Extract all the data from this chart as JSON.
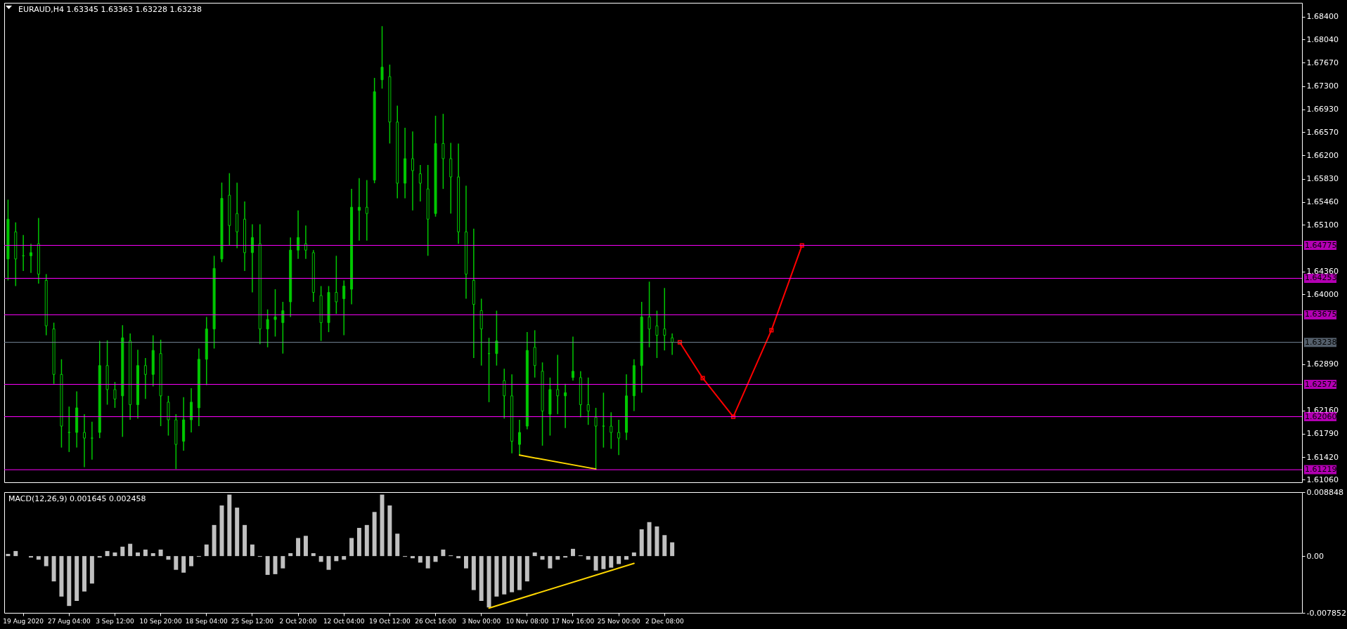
{
  "chart_data": [
    {
      "type": "candlestick",
      "title": "EURAUD,H4  1.63345 1.63363 1.63228 1.63238",
      "categories": [
        null,
        null,
        null,
        null,
        null,
        null,
        null,
        null,
        null,
        null,
        null,
        null,
        null,
        null,
        null,
        null,
        null,
        null,
        null,
        null,
        null,
        null,
        null,
        null,
        null,
        null,
        null,
        null,
        null,
        null,
        null,
        null,
        null,
        null,
        null,
        null,
        null,
        null,
        null,
        null,
        null,
        null,
        null,
        null,
        null,
        null,
        null,
        null,
        null,
        null,
        null,
        null,
        null,
        null,
        null,
        null,
        null,
        null,
        null,
        null,
        null,
        null,
        null,
        null,
        null,
        null,
        null,
        null,
        null,
        null,
        null,
        null,
        null,
        null,
        null,
        null,
        null,
        null,
        null,
        null,
        null,
        null,
        null,
        null,
        null,
        null,
        null,
        null,
        null,
        null,
        null,
        null,
        null,
        null,
        null,
        null,
        null,
        null,
        null,
        null,
        null,
        null,
        null,
        null,
        null,
        null,
        null,
        null,
        null,
        null,
        null,
        null,
        null,
        null,
        null,
        null,
        null,
        null,
        null,
        null,
        null,
        null,
        null,
        null,
        null,
        null,
        null,
        null,
        null,
        null,
        null,
        null,
        null,
        null,
        null,
        null,
        null,
        null,
        null,
        null,
        null,
        null,
        null,
        null,
        null,
        null,
        null,
        null,
        null,
        null,
        null,
        null,
        null,
        null,
        null,
        null,
        null,
        null,
        null,
        null,
        null,
        null,
        null,
        null,
        null,
        null,
        null,
        null,
        null,
        null
      ],
      "ohlc": [
        [
          1.6456,
          1.655,
          1.6422,
          1.6519
        ],
        [
          1.6499,
          1.6514,
          1.6413,
          1.6456
        ],
        [
          1.6461,
          1.6494,
          1.6437,
          1.6461
        ],
        [
          1.6461,
          1.648,
          1.6434,
          1.6466
        ],
        [
          1.648,
          1.6521,
          1.6417,
          1.6432
        ],
        [
          1.6422,
          1.6432,
          1.6335,
          1.635
        ],
        [
          1.6345,
          1.6355,
          1.6258,
          1.6273
        ],
        [
          1.6273,
          1.6297,
          1.6157,
          1.6191
        ],
        [
          1.6181,
          1.6222,
          1.615,
          1.6181
        ],
        [
          1.6181,
          1.6246,
          1.6157,
          1.622
        ],
        [
          1.6181,
          1.621,
          1.6126,
          1.6172
        ],
        [
          1.6172,
          1.6198,
          1.6138,
          1.6172
        ],
        [
          1.6181,
          1.6326,
          1.6172,
          1.6287
        ],
        [
          1.6287,
          1.6327,
          1.6225,
          1.6249
        ],
        [
          1.6249,
          1.6261,
          1.622,
          1.6234
        ],
        [
          1.6239,
          1.6351,
          1.6174,
          1.6331
        ],
        [
          1.6326,
          1.6338,
          1.6201,
          1.6225
        ],
        [
          1.6225,
          1.6312,
          1.6203,
          1.6287
        ],
        [
          1.6287,
          1.6299,
          1.6234,
          1.6273
        ],
        [
          1.6273,
          1.6335,
          1.6254,
          1.6311
        ],
        [
          1.6306,
          1.6328,
          1.6191,
          1.6239
        ],
        [
          1.6229,
          1.6239,
          1.6176,
          1.6201
        ],
        [
          1.6201,
          1.621,
          1.6123,
          1.6162
        ],
        [
          1.6167,
          1.6237,
          1.6152,
          1.6201
        ],
        [
          1.6201,
          1.6251,
          1.6181,
          1.6229
        ],
        [
          1.622,
          1.6314,
          1.6191,
          1.6297
        ],
        [
          1.6297,
          1.6364,
          1.6256,
          1.6345
        ],
        [
          1.6345,
          1.6461,
          1.6314,
          1.6441
        ],
        [
          1.6456,
          1.6577,
          1.6451,
          1.6552
        ],
        [
          1.6557,
          1.6592,
          1.6478,
          1.6509
        ],
        [
          1.6528,
          1.6577,
          1.6473,
          1.6499
        ],
        [
          1.6519,
          1.6547,
          1.6437,
          1.6466
        ],
        [
          1.6466,
          1.6511,
          1.6403,
          1.649
        ],
        [
          1.648,
          1.6511,
          1.6321,
          1.6345
        ],
        [
          1.6345,
          1.6376,
          1.6316,
          1.636
        ],
        [
          1.636,
          1.6408,
          1.6333,
          1.6364
        ],
        [
          1.6355,
          1.6388,
          1.6306,
          1.6374
        ],
        [
          1.6388,
          1.649,
          1.6364,
          1.647
        ],
        [
          1.647,
          1.6533,
          1.6456,
          1.649
        ],
        [
          1.648,
          1.6509,
          1.6456,
          1.647
        ],
        [
          1.6466,
          1.647,
          1.6388,
          1.6403
        ],
        [
          1.6398,
          1.6413,
          1.6326,
          1.6355
        ],
        [
          1.6355,
          1.6413,
          1.634,
          1.6403
        ],
        [
          1.6403,
          1.6461,
          1.6369,
          1.6388
        ],
        [
          1.6393,
          1.6422,
          1.6335,
          1.6413
        ],
        [
          1.6408,
          1.6567,
          1.6384,
          1.6538
        ],
        [
          1.6533,
          1.6584,
          1.6485,
          1.6538
        ],
        [
          1.6538,
          1.6581,
          1.6485,
          1.6528
        ],
        [
          1.6581,
          1.6743,
          1.6576,
          1.6721
        ],
        [
          1.674,
          1.6825,
          1.6726,
          1.676
        ],
        [
          1.6745,
          1.6764,
          1.6639,
          1.6673
        ],
        [
          1.6673,
          1.6699,
          1.6552,
          1.6576
        ],
        [
          1.6576,
          1.6664,
          1.6552,
          1.6615
        ],
        [
          1.6615,
          1.6658,
          1.6533,
          1.6596
        ],
        [
          1.6591,
          1.6605,
          1.6547,
          1.6576
        ],
        [
          1.6567,
          1.6605,
          1.6461,
          1.6519
        ],
        [
          1.6528,
          1.6683,
          1.6523,
          1.6639
        ],
        [
          1.6639,
          1.6686,
          1.6567,
          1.6615
        ],
        [
          1.6615,
          1.664,
          1.6528,
          1.6586
        ],
        [
          1.6586,
          1.6639,
          1.648,
          1.6499
        ],
        [
          1.6499,
          1.6572,
          1.6393,
          1.6432
        ],
        [
          1.6422,
          1.6504,
          1.6299,
          1.6384
        ],
        [
          1.6374,
          1.6393,
          1.6287,
          1.6345
        ],
        [
          1.6306,
          1.6331,
          1.6229,
          1.6306
        ],
        [
          1.6306,
          1.6374,
          1.6287,
          1.6326
        ],
        [
          1.6263,
          1.6282,
          1.6203,
          1.6239
        ],
        [
          1.6239,
          1.6273,
          1.6148,
          1.6167
        ],
        [
          1.6162,
          1.6201,
          1.6145,
          1.6181
        ],
        [
          1.6191,
          1.634,
          1.6186,
          1.6311
        ],
        [
          1.6316,
          1.6343,
          1.6268,
          1.6287
        ],
        [
          1.6278,
          1.6292,
          1.616,
          1.6215
        ],
        [
          1.621,
          1.6268,
          1.6176,
          1.6249
        ],
        [
          1.6249,
          1.6304,
          1.621,
          1.6239
        ],
        [
          1.6239,
          1.6258,
          1.6188,
          1.6244
        ],
        [
          1.6268,
          1.6333,
          1.6263,
          1.6278
        ],
        [
          1.6268,
          1.6278,
          1.6205,
          1.6225
        ],
        [
          1.6225,
          1.6268,
          1.6193,
          1.6215
        ],
        [
          1.6205,
          1.622,
          1.6122,
          1.6191
        ],
        [
          1.6191,
          1.6244,
          1.6157,
          1.6191
        ],
        [
          1.6191,
          1.6213,
          1.6155,
          1.6181
        ],
        [
          1.6181,
          1.6201,
          1.6145,
          1.6172
        ],
        [
          1.6181,
          1.6273,
          1.6169,
          1.6239
        ],
        [
          1.6239,
          1.6297,
          1.6215,
          1.6287
        ],
        [
          1.6287,
          1.6388,
          1.6244,
          1.6364
        ],
        [
          1.6364,
          1.642,
          1.6316,
          1.6345
        ],
        [
          1.635,
          1.6374,
          1.6299,
          1.6335
        ],
        [
          1.6345,
          1.641,
          1.6311,
          1.6335
        ],
        [
          1.6331,
          1.6338,
          1.6304,
          1.6324
        ],
        null,
        null,
        null,
        null,
        null,
        null,
        null,
        null,
        null,
        null,
        null,
        null,
        null,
        null,
        null,
        null,
        null,
        null,
        null,
        null,
        null,
        null,
        null,
        null,
        null,
        null,
        null,
        null,
        null,
        null,
        null,
        null,
        null,
        null,
        null,
        null,
        null,
        null,
        null,
        null,
        null,
        null,
        null,
        null,
        null,
        null,
        null,
        null,
        null,
        null,
        null,
        null,
        null,
        null,
        null,
        null,
        null,
        null,
        null,
        null,
        null,
        null,
        null,
        null,
        null,
        null,
        null,
        null,
        null,
        null,
        null,
        null,
        null,
        null,
        null,
        null,
        null,
        null,
        null,
        null,
        null,
        null
      ],
      "color": "#00c800",
      "ylim": [
        1.6102,
        1.6862
      ],
      "yticks": [
        {
          "value": 1.684,
          "label": "1.68400"
        },
        {
          "value": 1.6804,
          "label": "1.68040"
        },
        {
          "value": 1.6767,
          "label": "1.67670"
        },
        {
          "value": 1.673,
          "label": "1.67300"
        },
        {
          "value": 1.6693,
          "label": "1.66930"
        },
        {
          "value": 1.6657,
          "label": "1.66570"
        },
        {
          "value": 1.662,
          "label": "1.66200"
        },
        {
          "value": 1.6583,
          "label": "1.65830"
        },
        {
          "value": 1.6546,
          "label": "1.65460"
        },
        {
          "value": 1.651,
          "label": "1.65100"
        },
        {
          "value": 1.6436,
          "label": "1.64360"
        },
        {
          "value": 1.64,
          "label": "1.64000"
        },
        {
          "value": 1.6289,
          "label": "1.62890"
        },
        {
          "value": 1.6216,
          "label": "1.62160"
        },
        {
          "value": 1.6179,
          "label": "1.61790"
        },
        {
          "value": 1.6142,
          "label": "1.61420"
        },
        {
          "value": 1.6106,
          "label": "1.61060"
        }
      ],
      "ref_lines": [
        {
          "axis": "y",
          "value": 1.64775,
          "label": "1.64775",
          "color": "#ff00ff"
        },
        {
          "axis": "y",
          "value": 1.64253,
          "label": "1.64253",
          "color": "#ff00ff"
        },
        {
          "axis": "y",
          "value": 1.63675,
          "label": "1.63675",
          "color": "#ff00ff"
        },
        {
          "axis": "y",
          "value": 1.63238,
          "label": "1.63238",
          "color": "#778899"
        },
        {
          "axis": "y",
          "value": 1.62572,
          "label": "1.62572",
          "color": "#ff00ff"
        },
        {
          "axis": "y",
          "value": 1.6206,
          "label": "1.62060",
          "color": "#ff00ff"
        },
        {
          "axis": "y",
          "value": 1.61219,
          "label": "1.61219",
          "color": "#ff00ff"
        }
      ],
      "series": [
        {
          "type": "line",
          "color": "#ff0000",
          "marker": "square",
          "values": [
            null,
            null,
            null,
            null,
            null,
            null,
            null,
            null,
            null,
            null,
            null,
            null,
            null,
            null,
            null,
            null,
            null,
            null,
            null,
            null,
            null,
            null,
            null,
            null,
            null,
            null,
            null,
            null,
            null,
            null,
            null,
            null,
            null,
            null,
            null,
            null,
            null,
            null,
            null,
            null,
            null,
            null,
            null,
            null,
            null,
            null,
            null,
            null,
            null,
            null,
            null,
            null,
            null,
            null,
            null,
            null,
            null,
            null,
            null,
            null,
            null,
            null,
            null,
            null,
            null,
            null,
            null,
            null,
            null,
            null,
            null,
            null,
            null,
            null,
            null,
            null,
            null,
            null,
            null,
            null,
            null,
            null,
            null,
            null,
            null,
            null,
            null,
            null,
            1.63238,
            null,
            null,
            1.6267,
            null,
            null,
            null,
            1.6206,
            null,
            null,
            null,
            null,
            1.6343,
            null,
            null,
            null,
            1.64775,
            null,
            null,
            null,
            null,
            null,
            null,
            null,
            null,
            null,
            null,
            null,
            null,
            null,
            null,
            null,
            null,
            null,
            null,
            null,
            null,
            null,
            null,
            null,
            null,
            null,
            null,
            null,
            null,
            null,
            null,
            null,
            null,
            null,
            null,
            null,
            null,
            null,
            null,
            null,
            null,
            null,
            null,
            null,
            null,
            null,
            null,
            null,
            null,
            null,
            null,
            null,
            null,
            null,
            null,
            null,
            null,
            null,
            null,
            null,
            null,
            null,
            null,
            null,
            null,
            null
          ]
        },
        {
          "type": "line",
          "color": "#ffd700",
          "values": [
            null,
            null,
            null,
            null,
            null,
            null,
            null,
            null,
            null,
            null,
            null,
            null,
            null,
            null,
            null,
            null,
            null,
            null,
            null,
            null,
            null,
            null,
            null,
            null,
            null,
            null,
            null,
            null,
            null,
            null,
            null,
            null,
            null,
            null,
            null,
            null,
            null,
            null,
            null,
            null,
            null,
            null,
            null,
            null,
            null,
            null,
            null,
            null,
            null,
            null,
            null,
            null,
            null,
            null,
            null,
            null,
            null,
            null,
            null,
            null,
            null,
            null,
            null,
            null,
            null,
            null,
            null,
            1.6145,
            null,
            null,
            null,
            null,
            null,
            null,
            null,
            null,
            null,
            1.6123,
            null,
            null,
            null,
            null,
            null,
            null,
            null,
            null,
            null,
            null,
            null,
            null,
            null,
            null,
            null,
            null,
            null,
            null,
            null,
            null,
            null,
            null,
            null,
            null,
            null,
            null,
            null,
            null,
            null,
            null,
            null,
            null,
            null,
            null,
            null,
            null,
            null,
            null,
            null,
            null,
            null,
            null,
            null,
            null,
            null,
            null,
            null,
            null,
            null,
            null,
            null,
            null,
            null,
            null,
            null,
            null,
            null,
            null,
            null,
            null,
            null,
            null,
            null,
            null,
            null,
            null,
            null,
            null,
            null,
            null,
            null,
            null,
            null,
            null,
            null,
            null,
            null,
            null,
            null,
            null,
            null,
            null,
            null,
            null,
            null,
            null,
            null,
            null,
            null,
            null,
            null,
            null
          ]
        }
      ]
    },
    {
      "type": "bar",
      "title": "MACD(12,26,9) 0.001645 0.002458",
      "categories": [
        null,
        null,
        "19 Aug 2020",
        null,
        null,
        null,
        null,
        null,
        "27 Aug 04:00",
        null,
        null,
        null,
        null,
        null,
        "3 Sep 12:00",
        null,
        null,
        null,
        null,
        null,
        "10 Sep 20:00",
        null,
        null,
        null,
        null,
        null,
        "18 Sep 04:00",
        null,
        null,
        null,
        null,
        null,
        "25 Sep 12:00",
        null,
        null,
        null,
        null,
        null,
        "2 Oct 20:00",
        null,
        null,
        null,
        null,
        null,
        "12 Oct 04:00",
        null,
        null,
        null,
        null,
        null,
        "19 Oct 12:00",
        null,
        null,
        null,
        null,
        null,
        "26 Oct 16:00",
        null,
        null,
        null,
        null,
        null,
        "3 Nov 00:00",
        null,
        null,
        null,
        null,
        null,
        "10 Nov 08:00",
        null,
        null,
        null,
        null,
        null,
        "17 Nov 16:00",
        null,
        null,
        null,
        null,
        null,
        "25 Nov 00:00",
        null,
        null,
        null,
        null,
        null,
        "2 Dec 08:00",
        null,
        null,
        null,
        null,
        null,
        null,
        null,
        null,
        null,
        null,
        null,
        null,
        null,
        null,
        null,
        null,
        null,
        null,
        null,
        null,
        null,
        null,
        null,
        null,
        null,
        null,
        null,
        null,
        null,
        null,
        null,
        null,
        null,
        null,
        null,
        null,
        null,
        null,
        null,
        null,
        null,
        null,
        null,
        null,
        null,
        null,
        null,
        null,
        null,
        null,
        null,
        null,
        null,
        null,
        null,
        null,
        null,
        null,
        null,
        null,
        null,
        null,
        null,
        null,
        null,
        null,
        null,
        null,
        null,
        null,
        null,
        null,
        null,
        null,
        null,
        null,
        null,
        null,
        null,
        null,
        null,
        null,
        null
      ],
      "values": [
        0.0003,
        0.0007,
        0,
        -0.0002,
        -0.0005,
        -0.0014,
        -0.0035,
        -0.0056,
        -0.0069,
        -0.0062,
        -0.0049,
        -0.0038,
        -0.0002,
        0.0007,
        0.0005,
        0.0013,
        0.0017,
        0.0005,
        0.0009,
        0.0004,
        0.0009,
        -0.0005,
        -0.0019,
        -0.0023,
        -0.0014,
        -0.0001,
        0.0016,
        0.0043,
        0.007,
        0.0085,
        0.0067,
        0.0043,
        0.0016,
        -0.0001,
        -0.0026,
        -0.0025,
        -0.0017,
        0.0004,
        0.0025,
        0.0028,
        0.0004,
        -0.0008,
        -0.0019,
        -0.0007,
        -0.0005,
        0.0025,
        0.0039,
        0.0043,
        0.0061,
        0.0085,
        0.007,
        0.0031,
        -0.0001,
        -0.0003,
        -0.0009,
        -0.0017,
        -0.0008,
        0.0009,
        0.0001,
        -0.0003,
        -0.0017,
        -0.0047,
        -0.0062,
        -0.0071,
        -0.0056,
        -0.0053,
        -0.005,
        -0.0047,
        -0.0035,
        0.0005,
        -0.0005,
        -0.0017,
        -0.0005,
        -0.0002,
        0.001,
        0.0001,
        -0.0005,
        -0.002,
        -0.0018,
        -0.0016,
        -0.0011,
        -0.0005,
        0.0005,
        0.0037,
        0.0047,
        0.0041,
        0.0029,
        0.0019,
        null,
        null,
        null,
        null,
        null,
        null,
        null,
        null,
        null,
        null,
        null,
        null,
        null,
        null,
        null,
        null,
        null,
        null,
        null,
        null,
        null,
        null,
        null,
        null,
        null,
        null,
        null,
        null,
        null,
        null,
        null,
        null,
        null,
        null,
        null,
        null,
        null,
        null,
        null,
        null,
        null,
        null,
        null,
        null,
        null,
        null,
        null,
        null,
        null,
        null,
        null,
        null,
        null,
        null,
        null,
        null,
        null,
        null,
        null,
        null,
        null,
        null,
        null,
        null,
        null,
        null,
        null,
        null,
        null,
        null,
        null,
        null,
        null,
        null,
        null,
        null,
        null,
        null,
        null,
        null,
        null,
        null
      ],
      "color": "#c0c0c0",
      "ylim": [
        -0.007852,
        0.008848
      ],
      "yticks": [
        {
          "value": 0.008848,
          "label": "0.008848"
        },
        {
          "value": 0,
          "label": "0.00"
        },
        {
          "value": -0.007852,
          "label": "-0.007852"
        }
      ],
      "series": [
        {
          "type": "line",
          "color": "#ffd700",
          "values": [
            null,
            null,
            null,
            null,
            null,
            null,
            null,
            null,
            null,
            null,
            null,
            null,
            null,
            null,
            null,
            null,
            null,
            null,
            null,
            null,
            null,
            null,
            null,
            null,
            null,
            null,
            null,
            null,
            null,
            null,
            null,
            null,
            null,
            null,
            null,
            null,
            null,
            null,
            null,
            null,
            null,
            null,
            null,
            null,
            null,
            null,
            null,
            null,
            null,
            null,
            null,
            null,
            null,
            null,
            null,
            null,
            null,
            null,
            null,
            null,
            null,
            null,
            null,
            -0.0072,
            null,
            null,
            null,
            null,
            null,
            null,
            null,
            null,
            null,
            null,
            null,
            null,
            null,
            null,
            null,
            null,
            null,
            null,
            -0.001,
            null,
            null,
            null,
            null,
            null,
            null,
            null,
            null,
            null,
            null,
            null,
            null,
            null,
            null,
            null,
            null,
            null,
            null,
            null,
            null,
            null,
            null,
            null,
            null,
            null,
            null,
            null,
            null,
            null,
            null,
            null,
            null,
            null,
            null,
            null,
            null,
            null,
            null,
            null,
            null,
            null,
            null,
            null,
            null,
            null,
            null,
            null,
            null,
            null,
            null,
            null,
            null,
            null,
            null,
            null,
            null,
            null,
            null,
            null,
            null,
            null,
            null,
            null,
            null,
            null,
            null,
            null,
            null,
            null,
            null,
            null,
            null,
            null,
            null,
            null,
            null,
            null,
            null,
            null,
            null,
            null,
            null,
            null,
            null,
            null,
            null,
            null
          ]
        }
      ]
    }
  ]
}
